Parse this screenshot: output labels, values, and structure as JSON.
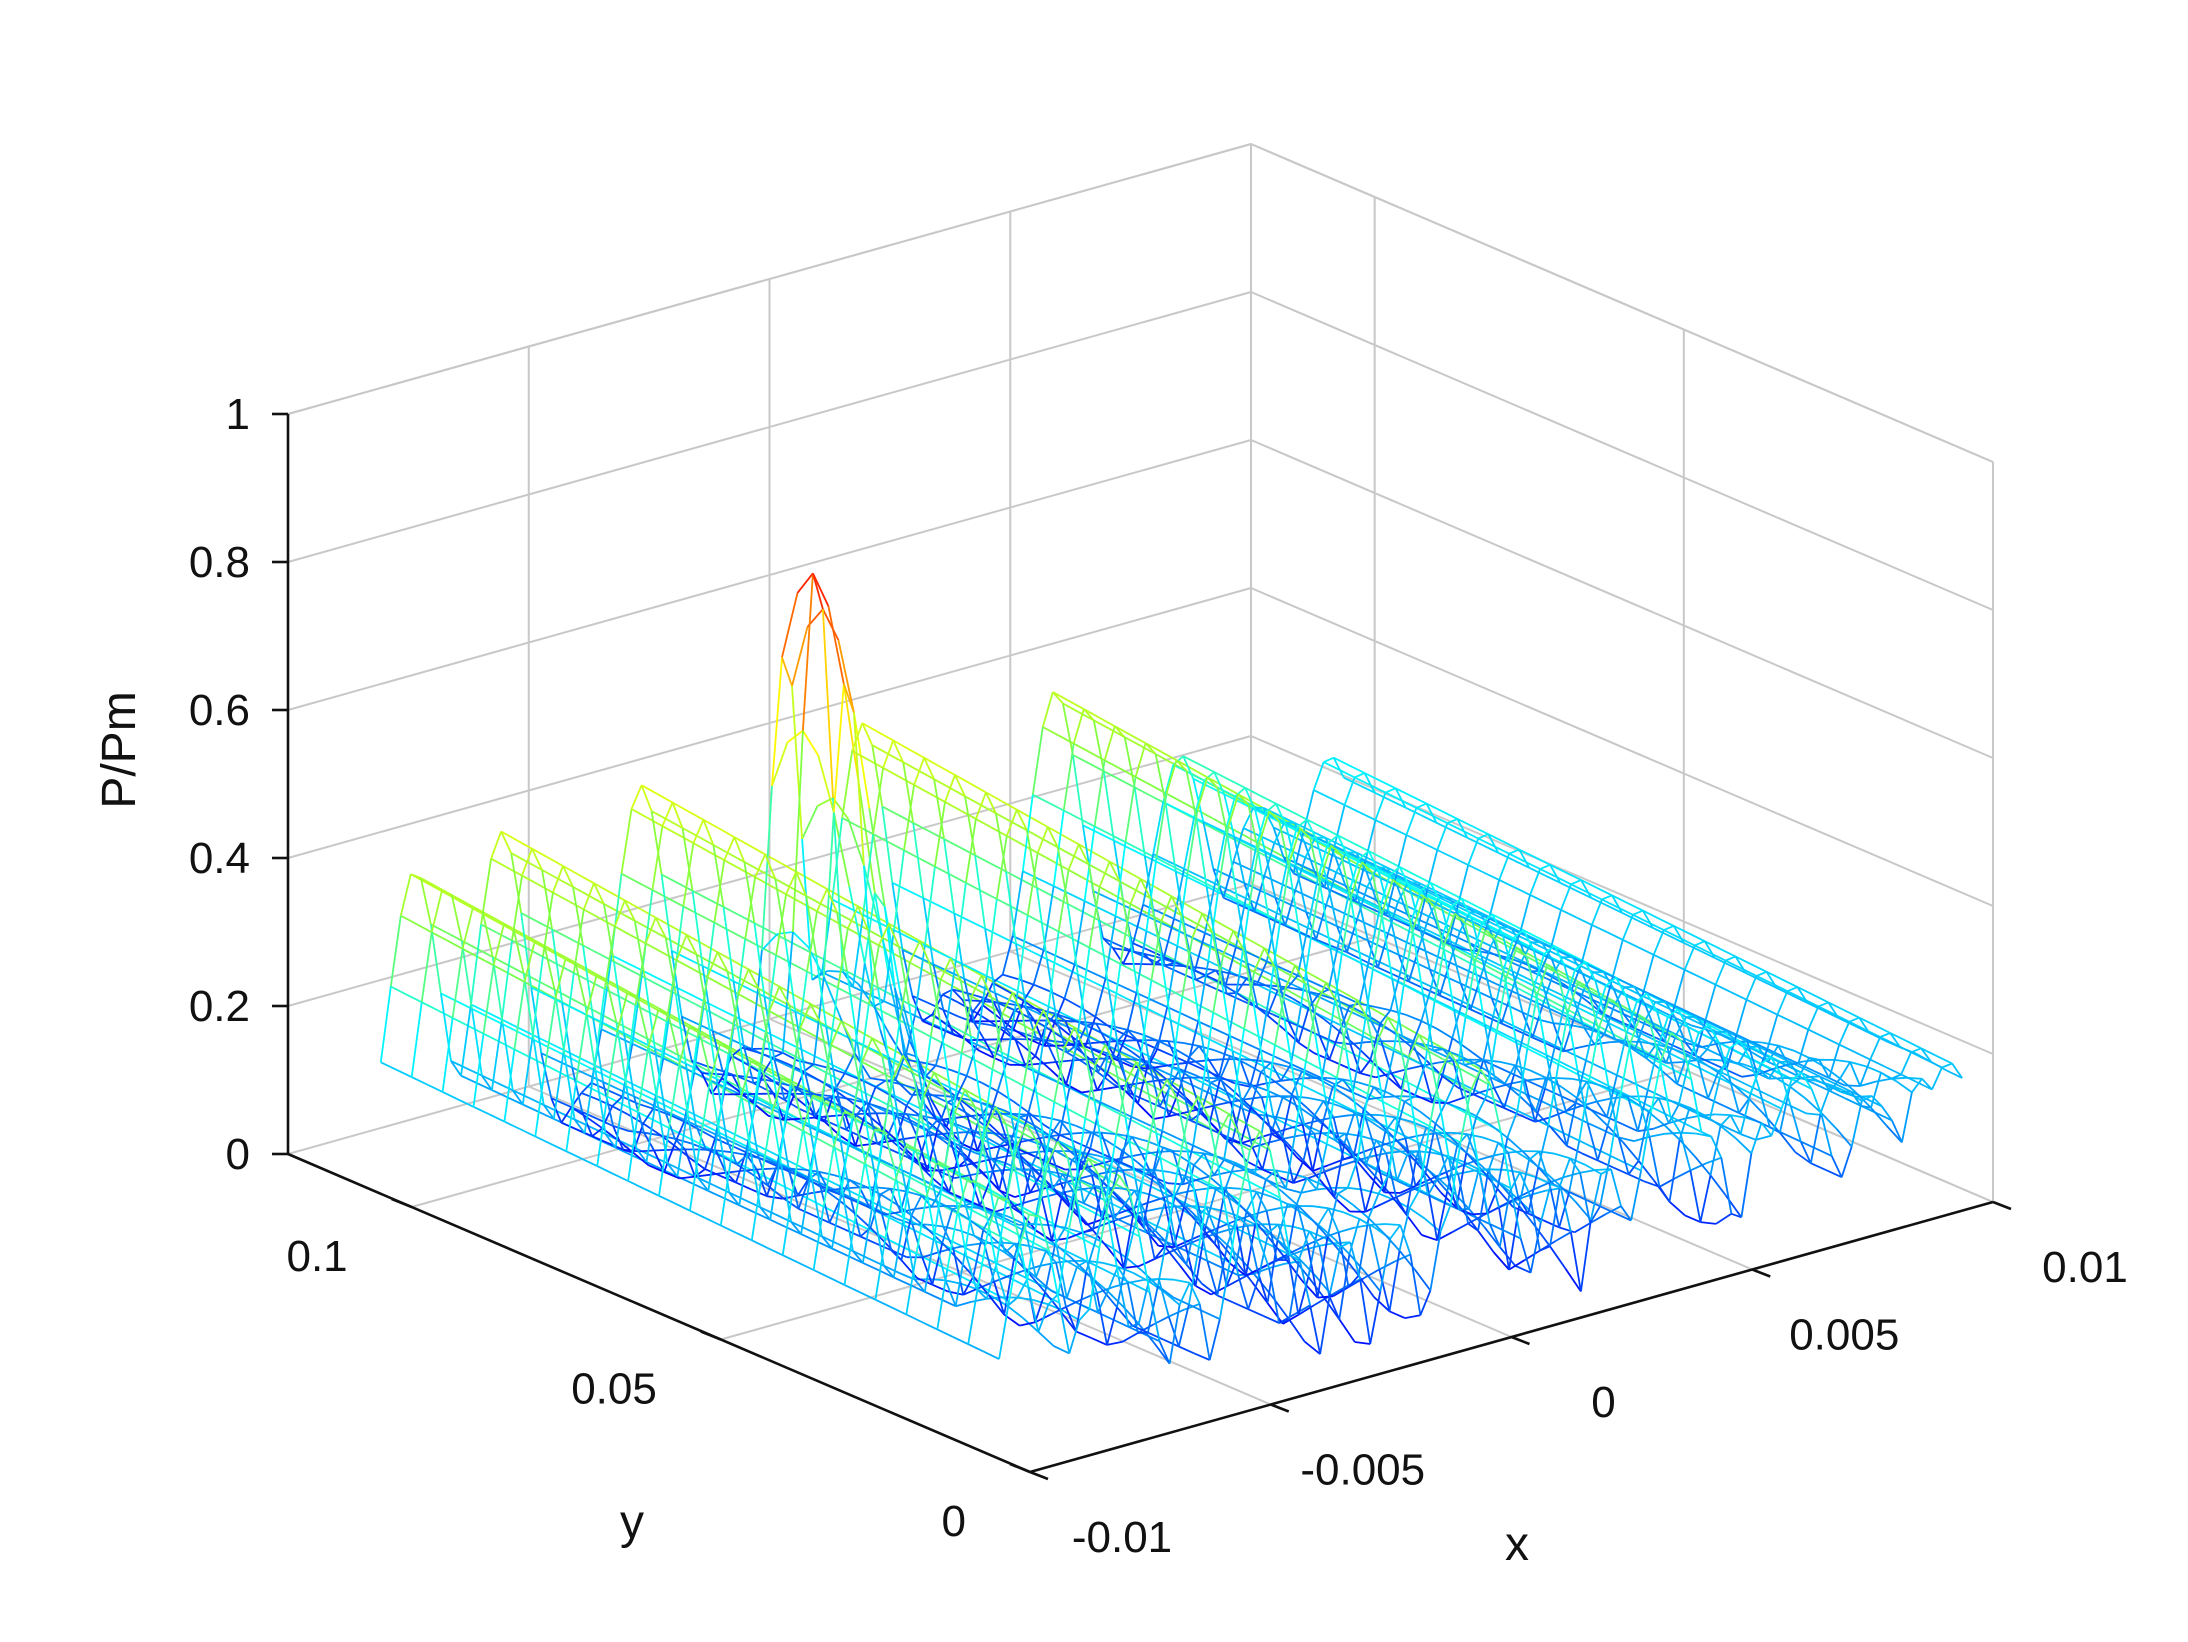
{
  "chart_data": {
    "type": "surface-mesh",
    "view": "3d-perspective",
    "title": "",
    "xlabel": "x",
    "ylabel": "y",
    "zlabel": "P/Pm",
    "xlim": [
      -0.01,
      0.01
    ],
    "ylim": [
      0,
      0.12
    ],
    "zlim": [
      0,
      1
    ],
    "x_ticks": [
      -0.01,
      -0.005,
      0,
      0.005,
      0.01
    ],
    "x_tick_labels": [
      "-0.01",
      "-0.005",
      "0",
      "0.005",
      "0.01"
    ],
    "y_ticks": [
      0,
      0.05,
      0.1
    ],
    "y_tick_labels": [
      "0",
      "0.05",
      "0.1"
    ],
    "z_ticks": [
      0,
      0.2,
      0.4,
      0.6,
      0.8,
      1
    ],
    "z_tick_labels": [
      "0",
      "0.2",
      "0.4",
      "0.6",
      "0.8",
      "1"
    ],
    "grid": true,
    "colormap": "jet",
    "colormap_stops": [
      "#0000ff",
      "#00a0ff",
      "#00ffff",
      "#80ff40",
      "#ffff00",
      "#ff8000",
      "#ff0000"
    ],
    "peak": {
      "x": -0.0016,
      "y": 0.1,
      "value": 0.72
    },
    "lobes": [
      {
        "x": -0.0093,
        "value": 0.44
      },
      {
        "x": -0.0075,
        "value": 0.46
      },
      {
        "x": -0.0046,
        "value": 0.47
      },
      {
        "x": 0.0,
        "value": 0.47
      },
      {
        "x": 0.004,
        "value": 0.44
      },
      {
        "x": 0.0066,
        "value": 0.3
      },
      {
        "x": 0.0082,
        "value": 0.2
      },
      {
        "x": 0.0097,
        "value": 0.24
      }
    ]
  }
}
